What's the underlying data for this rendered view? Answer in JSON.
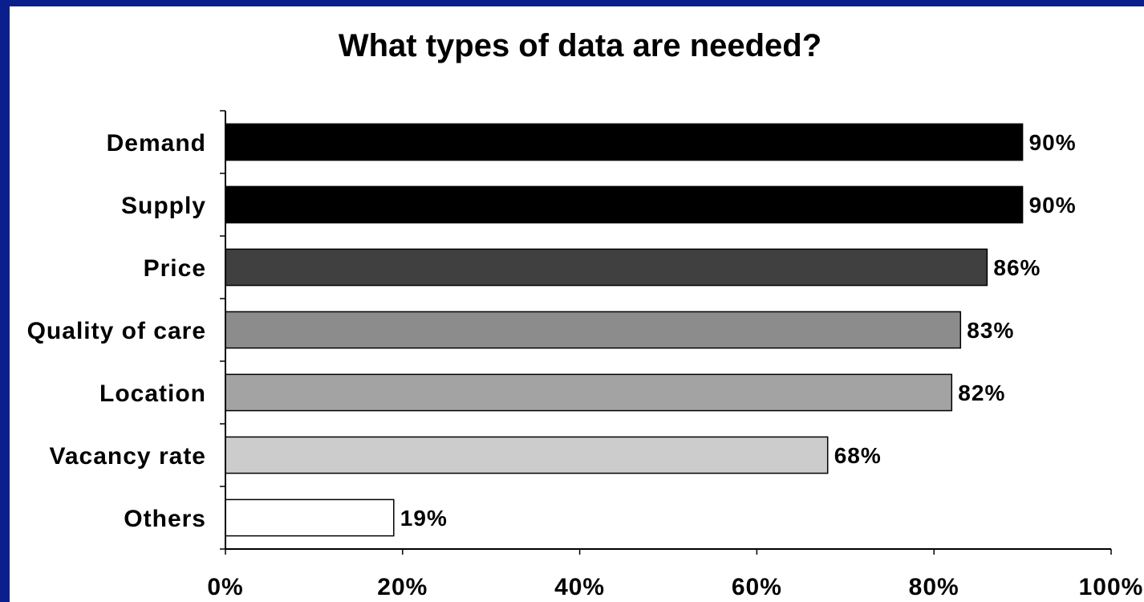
{
  "chart_data": {
    "type": "bar",
    "orientation": "horizontal",
    "title": "What types of data are needed?",
    "categories": [
      "Demand",
      "Supply",
      "Price",
      "Quality of care",
      "Location",
      "Vacancy rate",
      "Others"
    ],
    "values": [
      90,
      90,
      86,
      83,
      82,
      68,
      19
    ],
    "value_labels": [
      "90%",
      "90%",
      "86%",
      "83%",
      "82%",
      "68%",
      "19%"
    ],
    "colors": [
      "#000000",
      "#000000",
      "#404040",
      "#8c8c8c",
      "#a3a3a3",
      "#cccccc",
      "#ffffff"
    ],
    "xlim": [
      0,
      100
    ],
    "x_ticks": [
      0,
      20,
      40,
      60,
      80,
      100
    ],
    "x_tick_labels": [
      "0%",
      "20%",
      "40%",
      "60%",
      "80%",
      "100%"
    ],
    "xlabel": "",
    "ylabel": "",
    "grid": false,
    "legend": "none"
  },
  "colors": {
    "border": "#0a1e8c",
    "background": "#ffffff"
  }
}
